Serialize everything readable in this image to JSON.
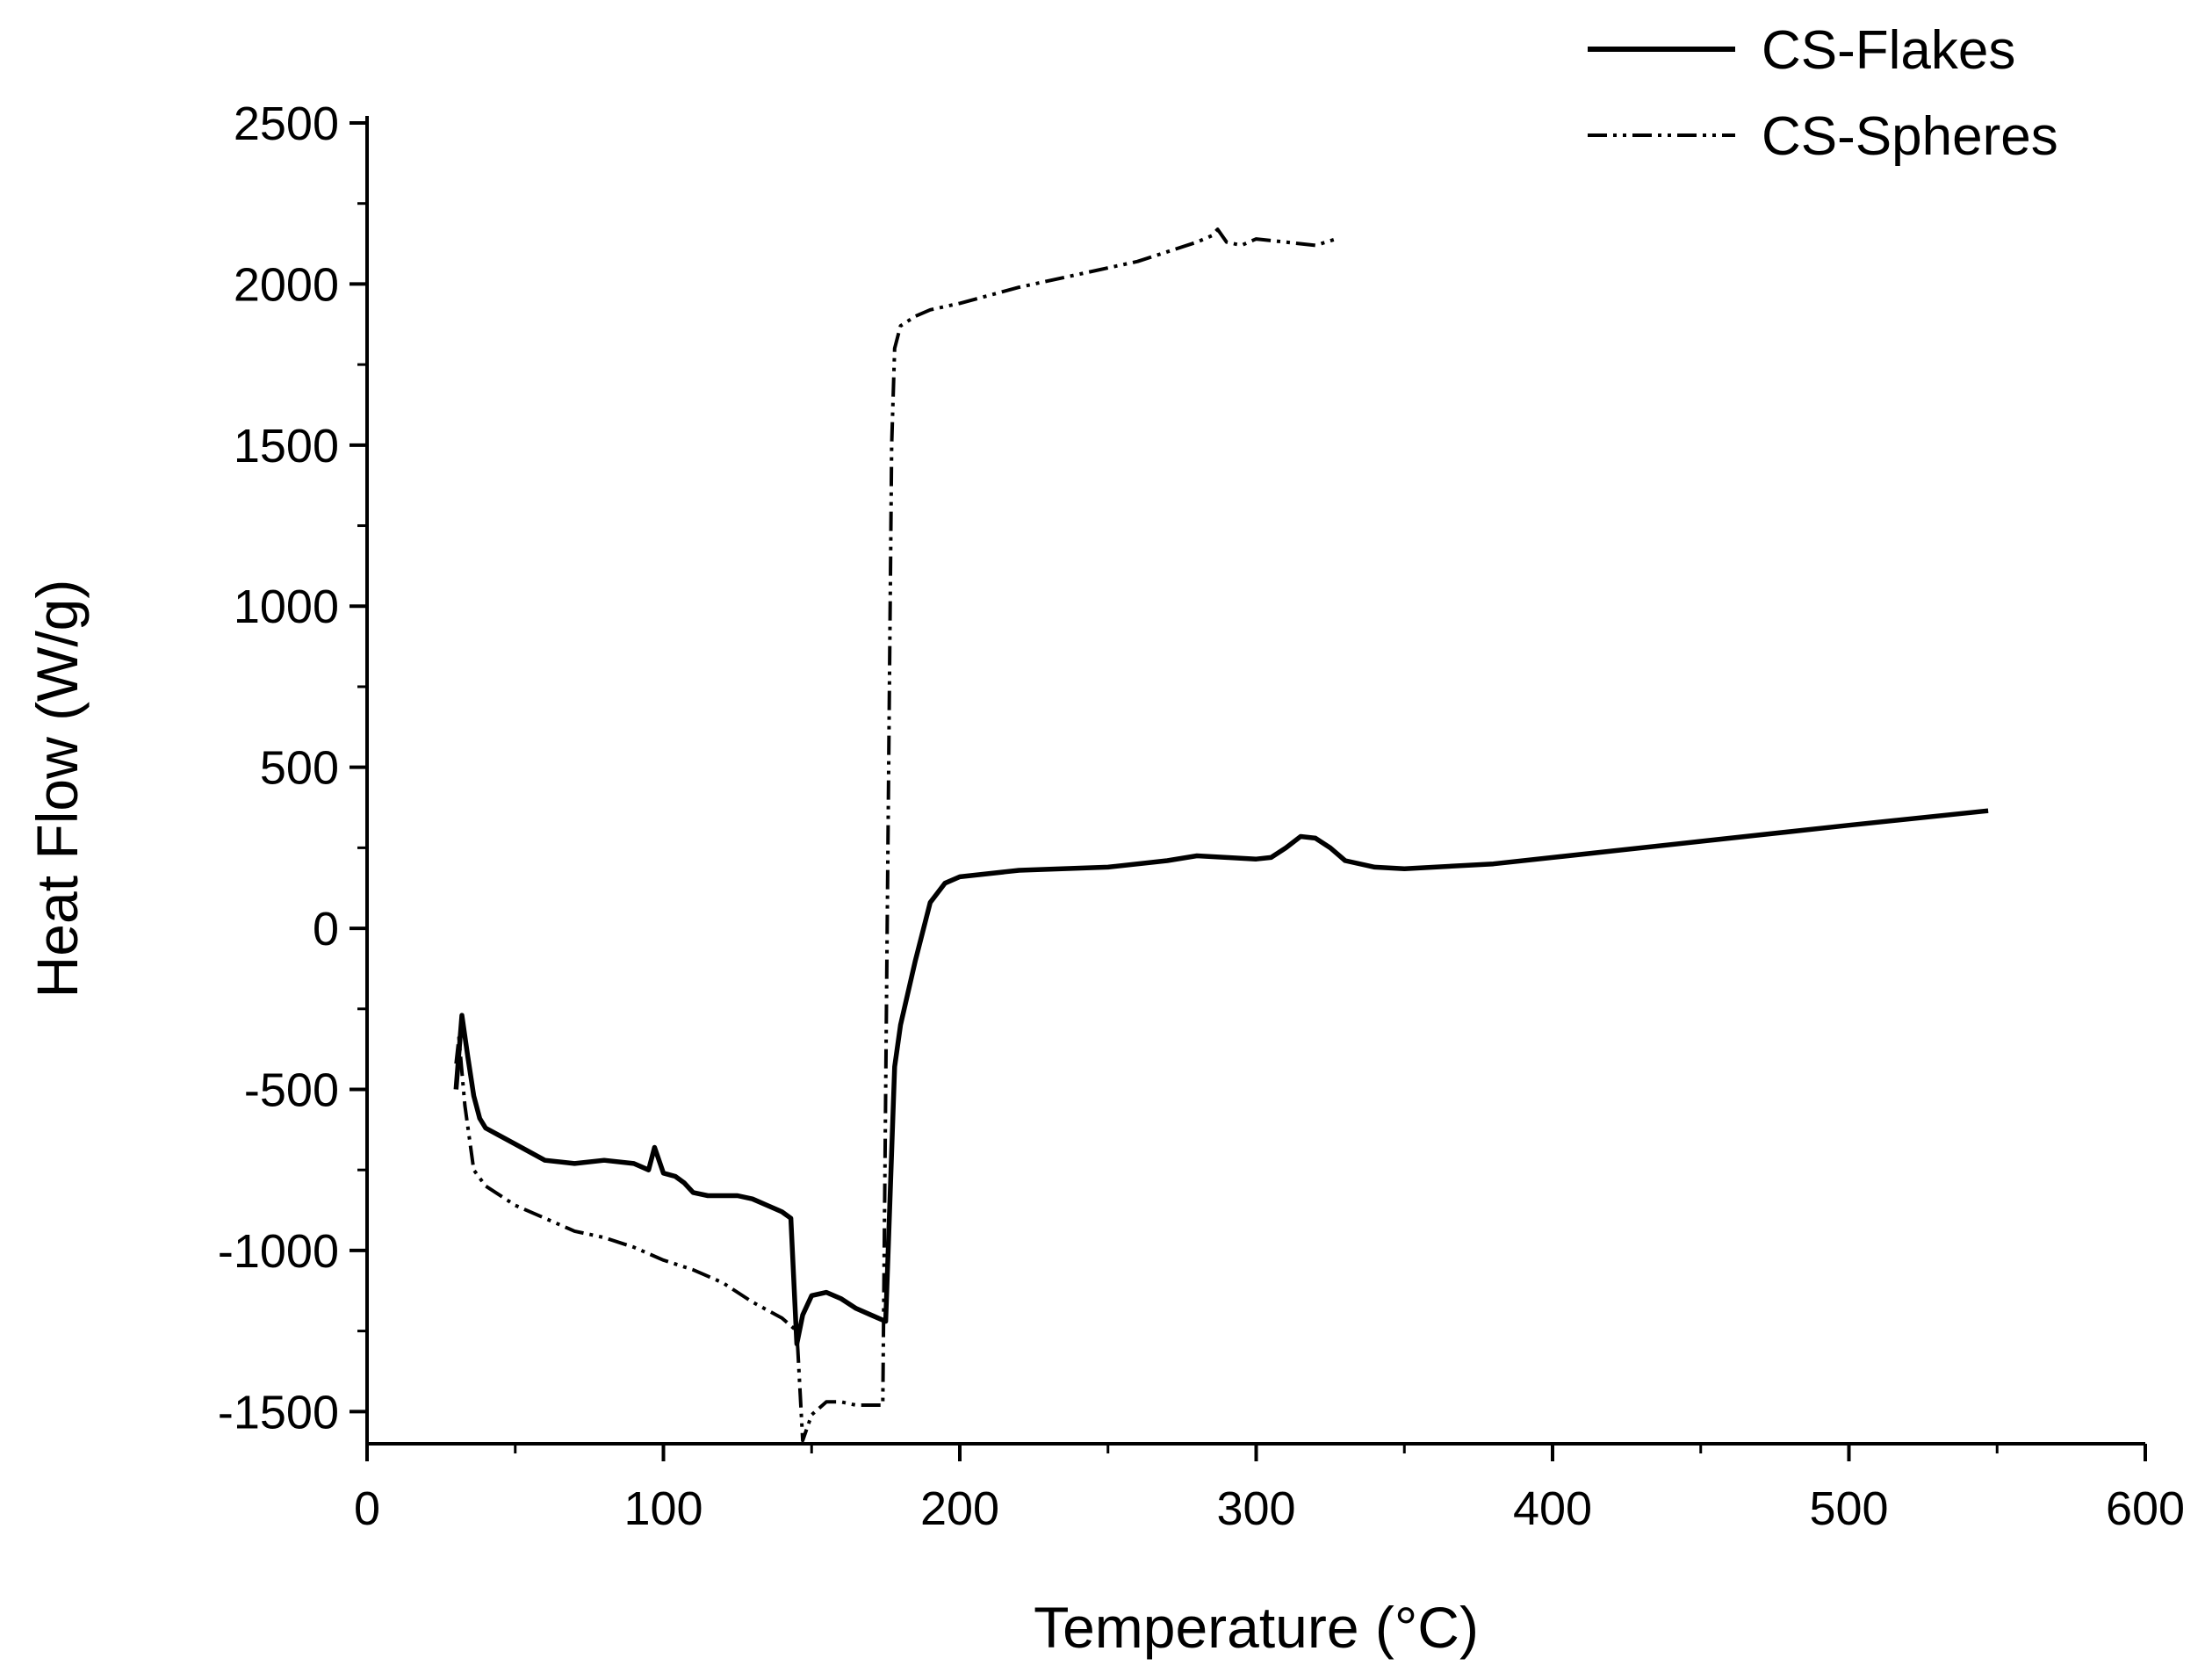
{
  "chart_data": {
    "type": "line",
    "title": "",
    "xlabel": "Temperature (°C)",
    "ylabel": "Heat Flow (W/g)",
    "xlim": [
      0,
      600
    ],
    "ylim": [
      -1600,
      2500
    ],
    "x_ticks": [
      0,
      100,
      200,
      300,
      400,
      500,
      600
    ],
    "x_tick_labels": [
      "0",
      "100",
      "200",
      "300",
      "400",
      "500",
      "600"
    ],
    "y_ticks": [
      2500,
      2000,
      1500,
      1000,
      500,
      0,
      -500,
      -1000,
      -1500
    ],
    "y_tick_labels": [
      "2500",
      "2000",
      "1500",
      "1000",
      "500",
      "0",
      "-500",
      "-1000",
      "-1500"
    ],
    "grid": false,
    "legend_position": "top-right",
    "colors": {
      "line": "#000000",
      "background": "#ffffff"
    },
    "series": [
      {
        "name": "CS-Flakes",
        "style": "solid",
        "x": [
          30,
          32,
          34,
          36,
          38,
          40,
          44,
          50,
          60,
          70,
          80,
          90,
          95,
          97,
          100,
          104,
          107,
          110,
          115,
          120,
          125,
          130,
          135,
          140,
          143,
          145,
          147,
          150,
          155,
          160,
          165,
          170,
          175,
          178,
          180,
          185,
          190,
          195,
          200,
          220,
          250,
          270,
          280,
          290,
          300,
          305,
          310,
          315,
          320,
          325,
          330,
          340,
          350,
          380,
          400,
          450,
          500,
          547
        ],
        "y": [
          -500,
          -270,
          -400,
          -520,
          -590,
          -620,
          -640,
          -670,
          -720,
          -730,
          -720,
          -730,
          -750,
          -680,
          -760,
          -770,
          -790,
          -820,
          -830,
          -830,
          -830,
          -840,
          -860,
          -880,
          -900,
          -1290,
          -1200,
          -1140,
          -1130,
          -1150,
          -1180,
          -1200,
          -1220,
          -430,
          -300,
          -100,
          80,
          140,
          160,
          180,
          190,
          210,
          225,
          220,
          215,
          220,
          250,
          285,
          280,
          250,
          210,
          190,
          185,
          200,
          220,
          270,
          320,
          365
        ]
      },
      {
        "name": "CS-Spheres",
        "style": "dash-dot-dot",
        "x": [
          30,
          31,
          33,
          36,
          40,
          50,
          60,
          70,
          80,
          90,
          100,
          110,
          120,
          130,
          140,
          145,
          147,
          150,
          155,
          160,
          165,
          170,
          174,
          175,
          176,
          177,
          178,
          180,
          185,
          190,
          200,
          220,
          240,
          260,
          270,
          280,
          285,
          287,
          290,
          295,
          300,
          310,
          320,
          327
        ],
        "y": [
          -420,
          -340,
          -550,
          -750,
          -800,
          -860,
          -900,
          -940,
          -960,
          -990,
          -1030,
          -1060,
          -1100,
          -1160,
          -1210,
          -1250,
          -1590,
          -1510,
          -1470,
          -1470,
          -1480,
          -1480,
          -1480,
          -500,
          500,
          1500,
          1800,
          1870,
          1900,
          1920,
          1940,
          1990,
          2030,
          2070,
          2100,
          2130,
          2150,
          2170,
          2130,
          2120,
          2140,
          2130,
          2120,
          2140
        ]
      }
    ]
  }
}
